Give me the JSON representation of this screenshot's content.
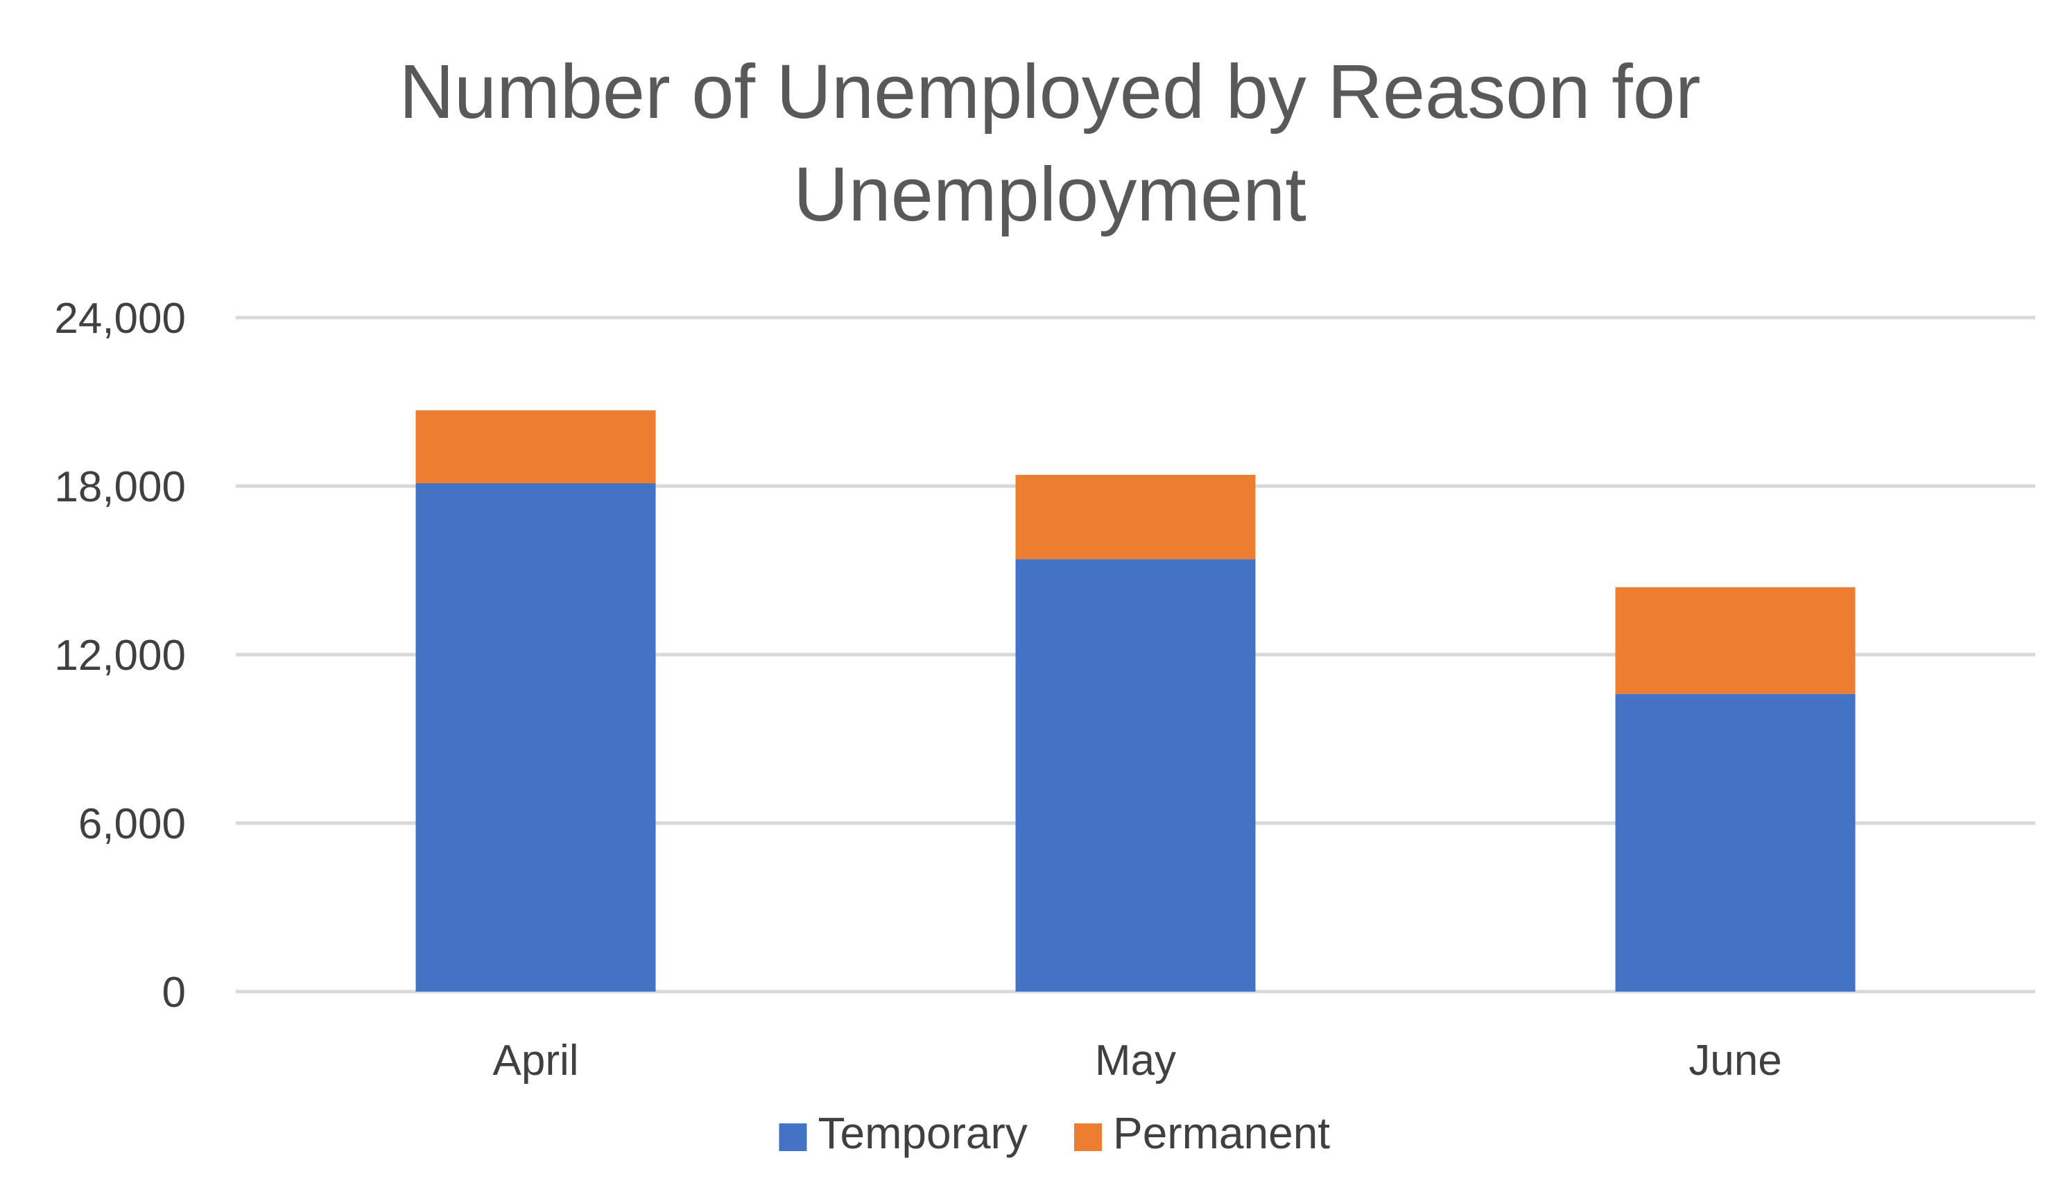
{
  "chart_data": {
    "type": "bar",
    "stacked": true,
    "title_lines": [
      "Number of Unemployed by Reason for",
      "Unemployment"
    ],
    "xlabel": "",
    "ylabel": "",
    "categories": [
      "April",
      "May",
      "June"
    ],
    "series": [
      {
        "name": "Temporary",
        "color": "#4472C4",
        "values": [
          18100,
          15400,
          10600
        ]
      },
      {
        "name": "Permanent",
        "color": "#ED7D31",
        "values": [
          2600,
          3000,
          3800
        ]
      }
    ],
    "ylim": [
      0,
      24000
    ],
    "yticks": [
      0,
      6000,
      12000,
      18000,
      24000
    ],
    "ytick_labels": [
      "0",
      "6,000",
      "12,000",
      "18,000",
      "24,000"
    ],
    "grid": true,
    "gridline_color": "#D9D9D9",
    "legend_position": "bottom"
  }
}
